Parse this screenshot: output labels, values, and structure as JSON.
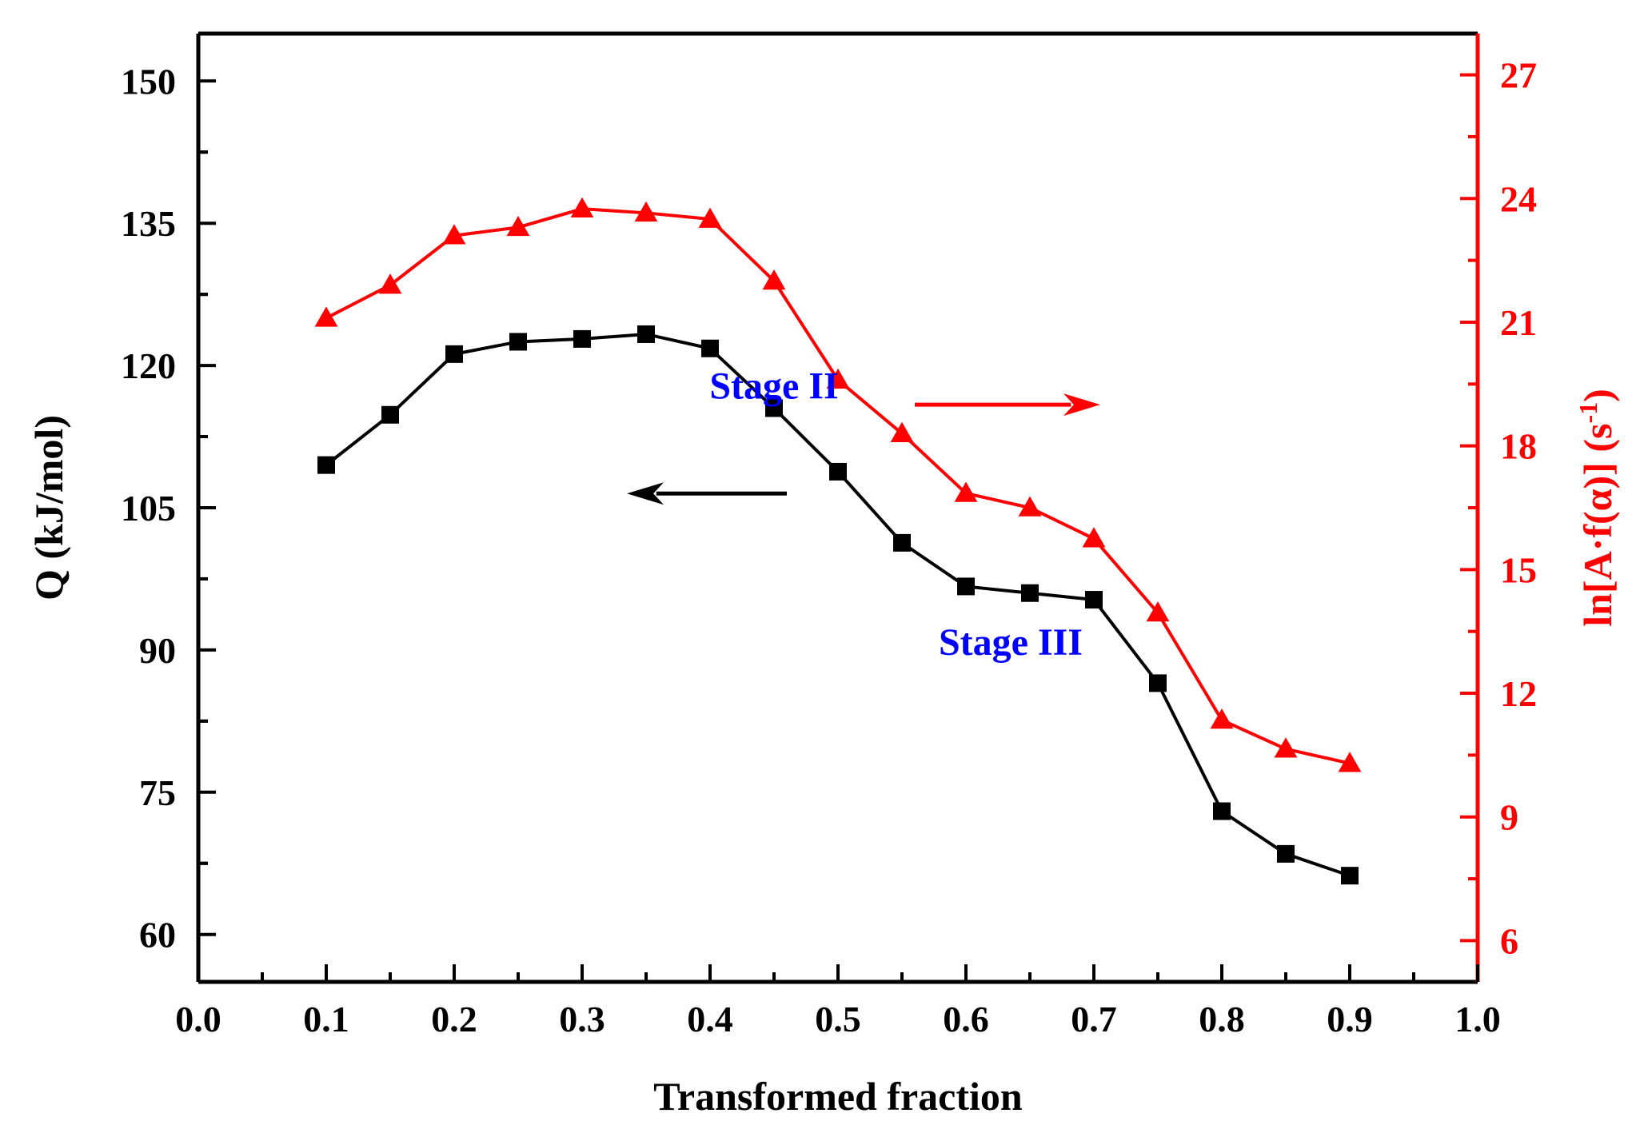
{
  "chart_data": {
    "type": "line",
    "xlabel": "Transformed fraction",
    "x_ticks": [
      "0.0",
      "0.1",
      "0.2",
      "0.3",
      "0.4",
      "0.5",
      "0.6",
      "0.7",
      "0.8",
      "0.9",
      "1.0"
    ],
    "xlim": [
      0.0,
      1.0
    ],
    "left_axis": {
      "label": "Q (kJ/mol)",
      "ticks": [
        "60",
        "75",
        "90",
        "105",
        "120",
        "135",
        "150"
      ],
      "ylim": [
        55,
        155
      ],
      "color": "#000000"
    },
    "right_axis": {
      "label": "ln[A·f(α)] (s",
      "label_sup": "-1",
      "label_end": ")",
      "ticks": [
        "6",
        "9",
        "12",
        "15",
        "18",
        "21",
        "24",
        "27"
      ],
      "ylim": [
        5,
        28
      ],
      "color": "#ff0000"
    },
    "series": [
      {
        "axis": "left",
        "marker": "square",
        "color": "#000000",
        "x": [
          0.1,
          0.15,
          0.2,
          0.25,
          0.3,
          0.35,
          0.4,
          0.45,
          0.5,
          0.55,
          0.6,
          0.65,
          0.7,
          0.75,
          0.8,
          0.85,
          0.9
        ],
        "values": [
          109.5,
          114.8,
          121.2,
          122.5,
          122.8,
          123.3,
          121.8,
          115.5,
          108.8,
          101.3,
          96.7,
          96.0,
          95.3,
          86.5,
          73.0,
          68.5,
          66.2
        ]
      },
      {
        "axis": "right",
        "marker": "triangle",
        "color": "#ff0000",
        "x": [
          0.1,
          0.15,
          0.2,
          0.25,
          0.3,
          0.35,
          0.4,
          0.45,
          0.5,
          0.55,
          0.6,
          0.65,
          0.7,
          0.75,
          0.8,
          0.85,
          0.9
        ],
        "values": [
          21.1,
          21.9,
          23.1,
          23.3,
          23.75,
          23.65,
          23.5,
          22.0,
          19.6,
          18.3,
          16.85,
          16.5,
          15.75,
          13.95,
          11.35,
          10.65,
          10.3
        ]
      }
    ],
    "annotations": [
      {
        "text": "Stage II",
        "color": "#0000ff",
        "x": 0.45,
        "y": 116.5
      },
      {
        "text": "Stage III",
        "color": "#0000ff",
        "x": 0.635,
        "y": 89.5
      }
    ],
    "arrows": [
      {
        "axis": "left",
        "direction": "left",
        "color": "#000000",
        "x_from": 0.46,
        "x_to": 0.335,
        "y": 106.5
      },
      {
        "axis": "right",
        "direction": "right",
        "color": "#ff0000",
        "x_from": 0.56,
        "x_to": 0.705,
        "y": 19.0
      }
    ]
  }
}
